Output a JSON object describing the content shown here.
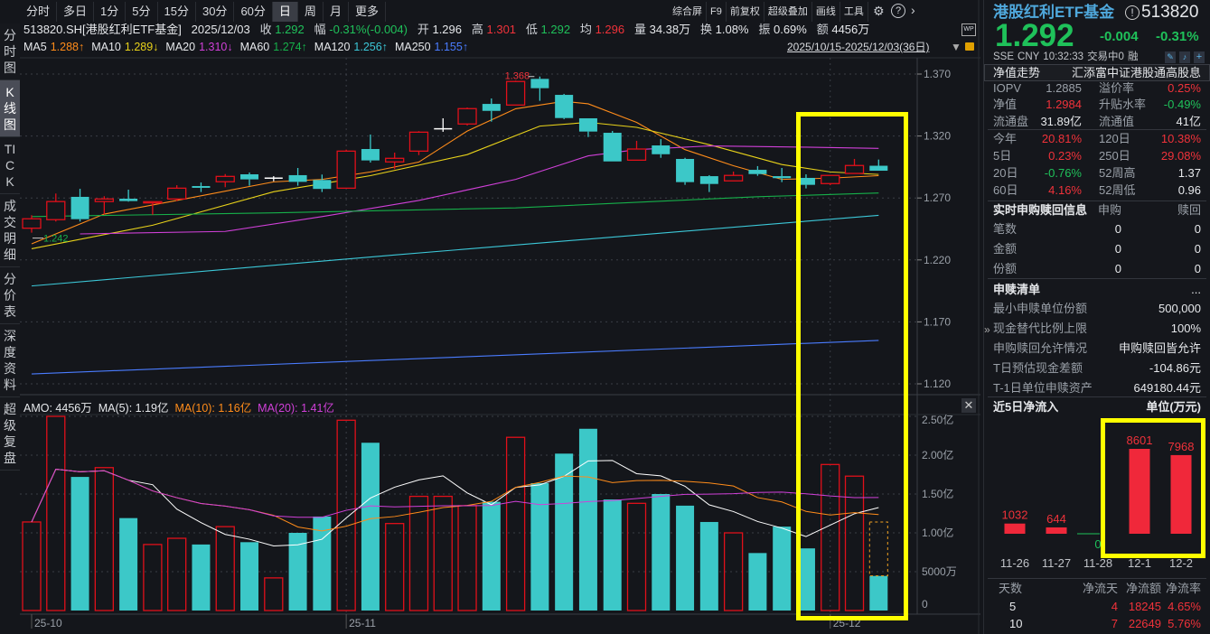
{
  "toolbar": {
    "tabs": [
      "分时",
      "多日",
      "1分",
      "5分",
      "15分",
      "30分",
      "60分",
      "日",
      "周",
      "月",
      "更多"
    ],
    "active_tab": "日",
    "tools": [
      "综合屏",
      "F9",
      "前复权",
      "超级叠加",
      "画线",
      "工具"
    ]
  },
  "sidebar": {
    "items": [
      "分时图",
      "K线图",
      "TICK",
      "成交明细",
      "分价表",
      "深度资料",
      "超级复盘"
    ],
    "active": "K线图"
  },
  "quote_line": {
    "symbol": "513820.SH[港股红利ETF基金]",
    "date": "2025/12/03",
    "close_label": "收",
    "close": "1.292",
    "change_label": "幅",
    "change": "-0.31%(-0.004)",
    "open_label": "开",
    "open": "1.296",
    "high_label": "高",
    "high": "1.301",
    "low_label": "低",
    "low": "1.292",
    "avg_label": "均",
    "avg": "1.296",
    "vol_label": "量",
    "vol": "34.38万",
    "turnover_label": "换",
    "turnover": "1.08%",
    "amp_label": "振",
    "amp": "0.69%",
    "amount_label": "额",
    "amount": "4456万"
  },
  "ma_legend": [
    {
      "label": "MA5",
      "value": "1.288↑",
      "color": "#ff8c1a"
    },
    {
      "label": "MA10",
      "value": "1.289↓",
      "color": "#e8d21a"
    },
    {
      "label": "MA20",
      "value": "1.310↓",
      "color": "#d040d8"
    },
    {
      "label": "MA60",
      "value": "1.274↑",
      "color": "#16b04a"
    },
    {
      "label": "MA120",
      "value": "1.256↑",
      "color": "#3cc8d8"
    },
    {
      "label": "MA250",
      "value": "1.155↑",
      "color": "#4a7cff"
    }
  ],
  "date_range": "2025/10/15-2025/12/03(36日)",
  "amo_legend": {
    "amo": "AMO: 4456万",
    "ma5": "MA(5): 1.19亿",
    "ma10": "MA(10): 1.16亿",
    "ma20": "MA(20): 1.41亿"
  },
  "chart_data": {
    "type": "candlestick",
    "price_axis": {
      "ticks": [
        "1.370",
        "1.320",
        "1.270",
        "1.220",
        "1.170",
        "1.120"
      ],
      "range": [
        1.12,
        1.37
      ]
    },
    "max_label": "1.368",
    "min_label": "1.242",
    "x_labels": [
      {
        "index": 0,
        "label": "25-10"
      },
      {
        "index": 13,
        "label": "25-11"
      },
      {
        "index": 33,
        "label": "25-12"
      }
    ],
    "candles": [
      [
        1.2456,
        1.2561,
        1.242,
        1.2532
      ],
      [
        1.2525,
        1.2736,
        1.251,
        1.2671
      ],
      [
        1.2709,
        1.2774,
        1.251,
        1.2529
      ],
      [
        1.2671,
        1.2714,
        1.2568,
        1.2692
      ],
      [
        1.2694,
        1.2767,
        1.267,
        1.2675
      ],
      [
        1.266,
        1.267,
        1.2565,
        1.267
      ],
      [
        1.2692,
        1.2803,
        1.2675,
        1.2779
      ],
      [
        1.2796,
        1.2825,
        1.2748,
        1.2782
      ],
      [
        1.2831,
        1.2893,
        1.2787,
        1.2874
      ],
      [
        1.2891,
        1.2906,
        1.2799,
        1.285
      ],
      [
        1.286,
        1.2876,
        1.2835,
        1.286
      ],
      [
        1.2884,
        1.2942,
        1.2799,
        1.283
      ],
      [
        1.2845,
        1.2889,
        1.2748,
        1.2773
      ],
      [
        1.2779,
        1.309,
        1.2779,
        1.3078
      ],
      [
        1.3095,
        1.3212,
        1.2986,
        1.3003
      ],
      [
        1.2991,
        1.3066,
        1.2933,
        1.302
      ],
      [
        1.3078,
        1.3239,
        1.3046,
        1.3231
      ],
      [
        1.3258,
        1.3343,
        1.3234,
        1.3258
      ],
      [
        1.3297,
        1.343,
        1.3285,
        1.3421
      ],
      [
        1.3459,
        1.3503,
        1.3316,
        1.3403
      ],
      [
        1.345,
        1.3647,
        1.345,
        1.364
      ],
      [
        1.3661,
        1.368,
        1.3484,
        1.3586
      ],
      [
        1.3532,
        1.354,
        1.3336,
        1.3345
      ],
      [
        1.3343,
        1.3343,
        1.3192,
        1.3236
      ],
      [
        1.3226,
        1.3241,
        1.2995,
        1.2995
      ],
      [
        1.3005,
        1.3161,
        1.3005,
        1.3095
      ],
      [
        1.3124,
        1.3175,
        1.3024,
        1.3053
      ],
      [
        1.3015,
        1.3024,
        1.2806,
        1.2828
      ],
      [
        1.2876,
        1.2884,
        1.2748,
        1.2813
      ],
      [
        1.2838,
        1.2913,
        1.2838,
        1.2882
      ],
      [
        1.2927,
        1.2957,
        1.2879,
        1.2893
      ],
      [
        1.2876,
        1.2942,
        1.2828,
        1.286
      ],
      [
        1.2862,
        1.2891,
        1.2777,
        1.2806
      ],
      [
        1.2816,
        1.2882,
        1.2803,
        1.2882
      ],
      [
        1.2898,
        1.3015,
        1.2898,
        1.2962
      ],
      [
        1.296,
        1.301,
        1.292,
        1.292
      ]
    ],
    "ma_lines": [
      {
        "name": "MA5",
        "color": "#ff8c1a",
        "points": [
          [
            0,
            1.233
          ],
          [
            3,
            1.257
          ],
          [
            6,
            1.268
          ],
          [
            10,
            1.283
          ],
          [
            12,
            1.285
          ],
          [
            14,
            1.291
          ],
          [
            16,
            1.299
          ],
          [
            18,
            1.324
          ],
          [
            20,
            1.342
          ],
          [
            22,
            1.348
          ],
          [
            23,
            1.346
          ],
          [
            25,
            1.331
          ],
          [
            27,
            1.309
          ],
          [
            29,
            1.296
          ],
          [
            31,
            1.285
          ],
          [
            33,
            1.286
          ],
          [
            35,
            1.288
          ]
        ]
      },
      {
        "name": "MA10",
        "color": "#e8d21a",
        "points": [
          [
            0,
            1.229
          ],
          [
            5,
            1.248
          ],
          [
            10,
            1.275
          ],
          [
            14,
            1.288
          ],
          [
            18,
            1.305
          ],
          [
            21,
            1.328
          ],
          [
            23,
            1.331
          ],
          [
            25,
            1.327
          ],
          [
            28,
            1.313
          ],
          [
            31,
            1.297
          ],
          [
            33,
            1.291
          ],
          [
            35,
            1.289
          ]
        ]
      },
      {
        "name": "MA20",
        "color": "#d040d8",
        "points": [
          [
            2,
            1.241
          ],
          [
            8,
            1.243
          ],
          [
            12,
            1.255
          ],
          [
            16,
            1.268
          ],
          [
            20,
            1.285
          ],
          [
            23,
            1.304
          ],
          [
            25,
            1.309
          ],
          [
            28,
            1.312
          ],
          [
            32,
            1.311
          ],
          [
            35,
            1.31
          ]
        ]
      },
      {
        "name": "MA60",
        "color": "#16b04a",
        "points": [
          [
            0,
            1.255
          ],
          [
            10,
            1.258
          ],
          [
            20,
            1.262
          ],
          [
            30,
            1.271
          ],
          [
            35,
            1.274
          ]
        ]
      },
      {
        "name": "MA120",
        "color": "#3cc8d8",
        "points": [
          [
            0,
            1.199
          ],
          [
            15,
            1.224
          ],
          [
            35,
            1.256
          ]
        ]
      },
      {
        "name": "MA250",
        "color": "#4a7cff",
        "points": [
          [
            0,
            1.128
          ],
          [
            35,
            1.155
          ]
        ]
      }
    ],
    "volume_axis": {
      "ticks": [
        "2.50亿",
        "2.00亿",
        "1.50亿",
        "1.00亿",
        "5000万",
        "0"
      ],
      "range": [
        0,
        2.5
      ],
      "unit": "亿"
    },
    "volumes": [
      1.14,
      2.5,
      1.72,
      1.84,
      1.19,
      0.85,
      0.93,
      0.85,
      1.08,
      0.88,
      0.42,
      1.0,
      1.21,
      2.45,
      2.16,
      1.12,
      1.47,
      1.47,
      1.35,
      1.4,
      2.23,
      1.64,
      2.02,
      2.34,
      1.43,
      1.38,
      1.5,
      1.35,
      1.14,
      1.0,
      0.74,
      1.08,
      0.8,
      1.88,
      1.73,
      0.4456
    ],
    "volume_projection": 1.14,
    "colors": {
      "up": "#e0101a",
      "down": "#3cc8c8",
      "flat": "#ffffff"
    }
  },
  "panel": {
    "name": "港股红利ETF基金",
    "code": "513820",
    "price": "1.292",
    "change": "-0.004",
    "change_pct": "-0.31%",
    "meta": [
      "SSE",
      "CNY",
      "10:32:33",
      "交易中0",
      "融"
    ],
    "nav_tab": "净值走势",
    "index_name": "汇添富中证港股通高股息",
    "partial_row": [
      "IOPV",
      "1.2885",
      "溢价率",
      "0.25%"
    ],
    "stats": [
      [
        {
          "t": "净值",
          "c": "grey"
        },
        {
          "t": "1.2984",
          "c": "red"
        },
        {
          "t": "升贴水率",
          "c": "grey"
        },
        {
          "t": "-0.49%",
          "c": "green"
        }
      ],
      [
        {
          "t": "流通盘",
          "c": "grey"
        },
        {
          "t": "31.89亿",
          "c": "white"
        },
        {
          "t": "流通值",
          "c": "grey"
        },
        {
          "t": "41亿",
          "c": "white"
        }
      ],
      [
        {
          "t": "今年",
          "c": "grey"
        },
        {
          "t": "20.81%",
          "c": "red"
        },
        {
          "t": "120日",
          "c": "grey"
        },
        {
          "t": "10.38%",
          "c": "red"
        }
      ],
      [
        {
          "t": "5日",
          "c": "grey"
        },
        {
          "t": "0.23%",
          "c": "red"
        },
        {
          "t": "250日",
          "c": "grey"
        },
        {
          "t": "29.08%",
          "c": "red"
        }
      ],
      [
        {
          "t": "20日",
          "c": "grey"
        },
        {
          "t": "-0.76%",
          "c": "green"
        },
        {
          "t": "52周高",
          "c": "grey"
        },
        {
          "t": "1.37",
          "c": "white"
        }
      ],
      [
        {
          "t": "60日",
          "c": "grey"
        },
        {
          "t": "4.16%",
          "c": "red"
        },
        {
          "t": "52周低",
          "c": "grey"
        },
        {
          "t": "0.96",
          "c": "white"
        }
      ]
    ],
    "realtime": {
      "title": "实时申购赎回信息",
      "col1": "申购",
      "col2": "赎回",
      "rows": [
        [
          "笔数",
          "0",
          "0"
        ],
        [
          "金额",
          "0",
          "0"
        ],
        [
          "份额",
          "0",
          "0"
        ]
      ]
    },
    "list": {
      "title": "申赎清单",
      "more": "...",
      "rows": [
        [
          "最小申赎单位份额",
          "500,000"
        ],
        [
          "现金替代比例上限",
          "100%"
        ],
        [
          "申购赎回允许情况",
          "申购赎回皆允许"
        ],
        [
          "T日预估现金差额",
          "-104.86元"
        ],
        [
          "T-1日单位申赎资产",
          "649180.44元"
        ]
      ]
    },
    "inflow": {
      "title": "近5日净流入",
      "unit": "单位(万元)",
      "chart_data": {
        "type": "bar",
        "categories": [
          "11-26",
          "11-27",
          "11-28",
          "12-1",
          "12-2"
        ],
        "values": [
          1032,
          644,
          0,
          8601,
          7968
        ]
      },
      "table": {
        "headers": [
          "天数",
          "净流天",
          "净流额",
          "净流率"
        ],
        "rows": [
          [
            "5",
            "4",
            "18245",
            "4.65%"
          ],
          [
            "10",
            "7",
            "22649",
            "5.76%"
          ]
        ]
      }
    }
  }
}
